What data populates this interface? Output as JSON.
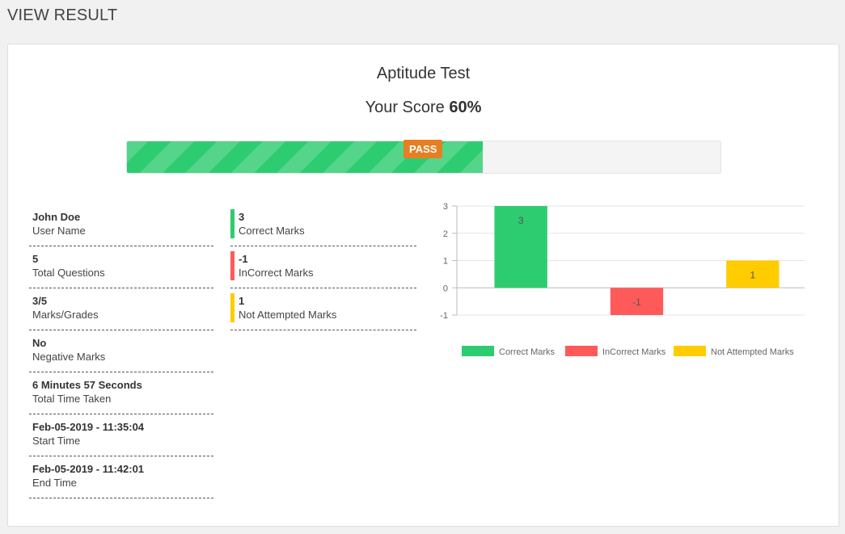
{
  "page": {
    "title": "VIEW RESULT"
  },
  "result": {
    "test_name": "Aptitude Test",
    "score_prefix": "Your Score",
    "score_value": "60%",
    "progress_fraction": 0.6,
    "badge": "PASS"
  },
  "details": [
    {
      "value": "John Doe",
      "label": "User Name"
    },
    {
      "value": "5",
      "label": "Total Questions"
    },
    {
      "value": "3/5",
      "label": "Marks/Grades"
    },
    {
      "value": "No",
      "label": "Negative Marks"
    },
    {
      "value": "6 Minutes 57 Seconds",
      "label": "Total Time Taken"
    },
    {
      "value": "Feb-05-2019 - 11:35:04",
      "label": "Start Time"
    },
    {
      "value": "Feb-05-2019 - 11:42:01",
      "label": "End Time"
    }
  ],
  "marks": [
    {
      "value": "3",
      "label": "Correct Marks",
      "color": "#2ecc71"
    },
    {
      "value": "-1",
      "label": "InCorrect Marks",
      "color": "#ff5a5a"
    },
    {
      "value": "1",
      "label": "Not Attempted Marks",
      "color": "#ffcc00"
    }
  ],
  "colors": {
    "primary_green": "#2ecc71",
    "badge_orange": "#e67e22",
    "incorrect_red": "#ff5a5a",
    "not_attempted_yellow": "#ffcc00"
  },
  "chart_data": {
    "type": "bar",
    "categories": [
      "Correct Marks",
      "InCorrect Marks",
      "Not Attempted Marks"
    ],
    "values": [
      3,
      -1,
      1
    ],
    "data_labels": [
      "3",
      "-1",
      "1"
    ],
    "colors": [
      "#2ecc71",
      "#ff5a5a",
      "#ffcc00"
    ],
    "ylim": [
      -1,
      3
    ],
    "y_ticks": [
      "3",
      "2",
      "1",
      "0",
      "-1"
    ],
    "grid": true,
    "legend": [
      "Correct Marks",
      "InCorrect Marks",
      "Not Attempted Marks"
    ],
    "legend_position": "bottom",
    "title": "",
    "xlabel": "",
    "ylabel": ""
  }
}
